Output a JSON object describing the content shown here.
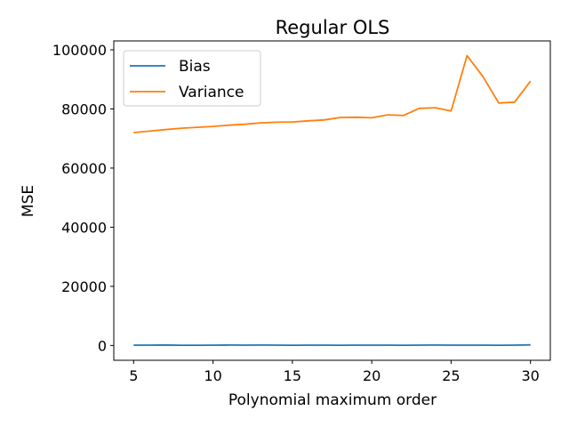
{
  "chart_data": {
    "type": "line",
    "title": "Regular OLS",
    "xlabel": "Polynomial maximum order",
    "ylabel": "MSE",
    "xlim": [
      3.75,
      31.25
    ],
    "ylim": [
      -5000,
      103000
    ],
    "xticks": [
      5,
      10,
      15,
      20,
      25,
      30
    ],
    "yticks": [
      0,
      20000,
      40000,
      60000,
      80000,
      100000
    ],
    "grid": false,
    "legend_position": "upper-left",
    "x": [
      5,
      6,
      7,
      8,
      9,
      10,
      11,
      12,
      13,
      14,
      15,
      16,
      17,
      18,
      19,
      20,
      21,
      22,
      23,
      24,
      25,
      26,
      27,
      28,
      29,
      30
    ],
    "series": [
      {
        "name": "Bias",
        "color": "#1f77b4",
        "values": [
          100,
          120,
          160,
          80,
          90,
          110,
          150,
          120,
          130,
          100,
          90,
          110,
          100,
          90,
          110,
          120,
          100,
          90,
          110,
          130,
          110,
          100,
          120,
          90,
          100,
          200
        ]
      },
      {
        "name": "Variance",
        "color": "#ff7f0e",
        "values": [
          72000,
          72500,
          73000,
          73500,
          73800,
          74100,
          74500,
          74800,
          75300,
          75500,
          75600,
          76000,
          76300,
          77100,
          77200,
          77000,
          78000,
          77800,
          80200,
          80400,
          79300,
          98000,
          91000,
          82000,
          82300,
          89400
        ]
      }
    ]
  }
}
